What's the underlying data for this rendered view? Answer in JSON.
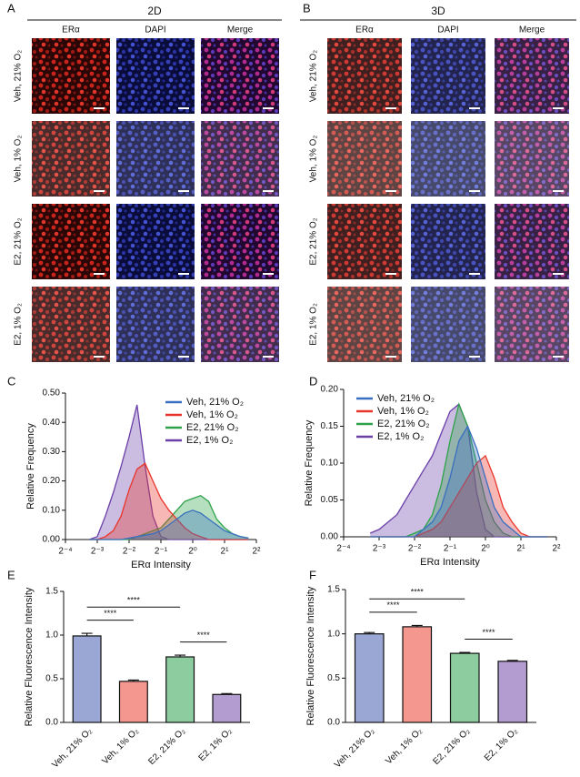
{
  "panels": {
    "A": {
      "letter": "A",
      "title": "2D",
      "columns": [
        "ERα",
        "DAPI",
        "Merge"
      ],
      "rows": [
        "Veh, 21% O₂",
        "Veh, 1% O₂",
        "E2, 21% O₂",
        "E2, 1% O₂"
      ]
    },
    "B": {
      "letter": "B",
      "title": "3D",
      "columns": [
        "ERα",
        "DAPI",
        "Merge"
      ],
      "rows": [
        "Veh, 21% O₂",
        "Veh, 1% O₂",
        "E2, 21% O₂",
        "E2, 1% O₂"
      ]
    }
  },
  "chart_data": [
    {
      "type": "area",
      "panel_label": "C",
      "x_label": "ERα Intensity",
      "y_label": "Relative Frequency",
      "xscale": "log",
      "log_base": 2,
      "xlim": [
        0.0625,
        4
      ],
      "xticks": [
        {
          "value": 0.0625,
          "label": "2⁻⁴"
        },
        {
          "value": 0.125,
          "label": "2⁻³"
        },
        {
          "value": 0.25,
          "label": "2⁻²"
        },
        {
          "value": 0.5,
          "label": "2⁻¹"
        },
        {
          "value": 1,
          "label": "2⁰"
        },
        {
          "value": 2,
          "label": "2¹"
        },
        {
          "value": 4,
          "label": "2²"
        }
      ],
      "ylim": [
        0,
        0.5
      ],
      "yticks": [
        {
          "value": 0,
          "label": "0.00"
        },
        {
          "value": 0.1,
          "label": "0.10"
        },
        {
          "value": 0.2,
          "label": "0.20"
        },
        {
          "value": 0.3,
          "label": "0.30"
        },
        {
          "value": 0.4,
          "label": "0.40"
        },
        {
          "value": 0.5,
          "label": "0.50"
        }
      ],
      "legend": "upper right",
      "x": [
        0.105,
        0.125,
        0.149,
        0.177,
        0.21,
        0.25,
        0.297,
        0.354,
        0.42,
        0.5,
        0.595,
        0.707,
        0.841,
        1,
        1.189,
        1.414,
        1.682,
        2,
        2.378,
        2.828,
        3.364
      ],
      "series": [
        {
          "name": "Veh, 21% O₂",
          "color": "#3a6fbf",
          "values": [
            0,
            0,
            0,
            0,
            0,
            0.005,
            0.01,
            0.015,
            0.02,
            0.03,
            0.05,
            0.07,
            0.09,
            0.1,
            0.09,
            0.07,
            0.05,
            0.03,
            0.02,
            0.01,
            0.005
          ]
        },
        {
          "name": "Veh, 1% O₂",
          "color": "#e8352b",
          "values": [
            0,
            0,
            0.01,
            0.03,
            0.08,
            0.17,
            0.24,
            0.26,
            0.2,
            0.14,
            0.1,
            0.07,
            0.04,
            0.02,
            0.01,
            0,
            0,
            0,
            0,
            0,
            0
          ]
        },
        {
          "name": "E2, 21% O₂",
          "color": "#2ea34a",
          "values": [
            0,
            0,
            0,
            0,
            0,
            0,
            0.01,
            0.02,
            0.03,
            0.04,
            0.07,
            0.1,
            0.13,
            0.14,
            0.15,
            0.13,
            0.07,
            0.04,
            0.02,
            0.01,
            0.005
          ]
        },
        {
          "name": "E2, 1% O₂",
          "color": "#6a3fa8",
          "values": [
            0,
            0.01,
            0.08,
            0.16,
            0.25,
            0.35,
            0.46,
            0.25,
            0.08,
            0.01,
            0,
            0,
            0,
            0,
            0,
            0,
            0,
            0,
            0,
            0,
            0
          ]
        }
      ]
    },
    {
      "type": "area",
      "panel_label": "D",
      "x_label": "ERα Intensity",
      "y_label": "Relative Frequency",
      "xscale": "log",
      "log_base": 2,
      "xlim": [
        0.0625,
        4
      ],
      "xticks": [
        {
          "value": 0.0625,
          "label": "2⁻⁴"
        },
        {
          "value": 0.125,
          "label": "2⁻³"
        },
        {
          "value": 0.25,
          "label": "2⁻²"
        },
        {
          "value": 0.5,
          "label": "2⁻¹"
        },
        {
          "value": 1,
          "label": "2⁰"
        },
        {
          "value": 2,
          "label": "2¹"
        },
        {
          "value": 4,
          "label": "2²"
        }
      ],
      "ylim": [
        0,
        0.2
      ],
      "yticks": [
        {
          "value": 0,
          "label": "0.00"
        },
        {
          "value": 0.05,
          "label": "0.05"
        },
        {
          "value": 0.1,
          "label": "0.10"
        },
        {
          "value": 0.15,
          "label": "0.15"
        },
        {
          "value": 0.2,
          "label": "0.20"
        }
      ],
      "legend": "upper left",
      "x": [
        0.105,
        0.125,
        0.149,
        0.177,
        0.21,
        0.25,
        0.297,
        0.354,
        0.42,
        0.5,
        0.595,
        0.707,
        0.841,
        1,
        1.189,
        1.414,
        1.682,
        2,
        2.378,
        2.828,
        3.364
      ],
      "series": [
        {
          "name": "Veh, 21% O₂",
          "color": "#3a6fbf",
          "values": [
            0,
            0,
            0,
            0,
            0,
            0,
            0.01,
            0.02,
            0.04,
            0.08,
            0.13,
            0.15,
            0.12,
            0.08,
            0.04,
            0.02,
            0.01,
            0,
            0,
            0,
            0
          ]
        },
        {
          "name": "Veh, 1% O₂",
          "color": "#e8352b",
          "values": [
            0,
            0,
            0,
            0,
            0,
            0,
            0.005,
            0.01,
            0.02,
            0.04,
            0.06,
            0.08,
            0.1,
            0.11,
            0.08,
            0.04,
            0.02,
            0.005,
            0,
            0,
            0
          ]
        },
        {
          "name": "E2, 21% O₂",
          "color": "#2ea34a",
          "values": [
            0,
            0,
            0,
            0,
            0,
            0.005,
            0.01,
            0.03,
            0.07,
            0.13,
            0.18,
            0.15,
            0.1,
            0.05,
            0.02,
            0.005,
            0,
            0,
            0,
            0,
            0
          ]
        },
        {
          "name": "E2, 1% O₂",
          "color": "#6a3fa8",
          "values": [
            0.005,
            0.01,
            0.02,
            0.03,
            0.05,
            0.07,
            0.09,
            0.11,
            0.14,
            0.17,
            0.18,
            0.15,
            0.06,
            0.01,
            0,
            0,
            0,
            0,
            0,
            0,
            0
          ]
        }
      ]
    },
    {
      "type": "bar",
      "panel_label": "E",
      "y_label": "Relative Fluorescence Intensity",
      "categories": [
        "Veh, 21% O₂",
        "Veh, 1% O₂",
        "E2, 21% O₂",
        "E2, 1% O₂"
      ],
      "values": [
        0.99,
        0.47,
        0.75,
        0.32
      ],
      "errors": [
        0.03,
        0.015,
        0.02,
        0.01
      ],
      "colors": [
        "#9aa7d4",
        "#f4978e",
        "#8dcc9e",
        "#b39cd0"
      ],
      "ylim": [
        0,
        1.5
      ],
      "yticks": [
        {
          "value": 0,
          "label": "0.0"
        },
        {
          "value": 0.5,
          "label": "0.5"
        },
        {
          "value": 1,
          "label": "1.0"
        },
        {
          "value": 1.5,
          "label": "1.5"
        }
      ],
      "annotations": [
        {
          "text": "****",
          "between": [
            "Veh, 21% O₂",
            "Veh, 1% O₂"
          ]
        },
        {
          "text": "****",
          "between": [
            "Veh, 21% O₂",
            "E2, 21% O₂"
          ]
        },
        {
          "text": "****",
          "between": [
            "E2, 21% O₂",
            "E2, 1% O₂"
          ]
        }
      ]
    },
    {
      "type": "bar",
      "panel_label": "F",
      "y_label": "Relative Fluorescence Intensity",
      "categories": [
        "Veh, 21% O₂",
        "Veh, 1% O₂",
        "E2, 21% O₂",
        "E2, 1% O₂"
      ],
      "values": [
        1.0,
        1.08,
        0.78,
        0.69
      ],
      "errors": [
        0.015,
        0.015,
        0.01,
        0.01
      ],
      "colors": [
        "#9aa7d4",
        "#f4978e",
        "#8dcc9e",
        "#b39cd0"
      ],
      "ylim": [
        0,
        1.5
      ],
      "yticks": [
        {
          "value": 0,
          "label": "0.0"
        },
        {
          "value": 0.5,
          "label": "0.5"
        },
        {
          "value": 1,
          "label": "1.0"
        },
        {
          "value": 1.5,
          "label": "1.5"
        }
      ],
      "annotations": [
        {
          "text": "****",
          "between": [
            "Veh, 21% O₂",
            "Veh, 1% O₂"
          ]
        },
        {
          "text": "****",
          "between": [
            "Veh, 21% O₂",
            "E2, 21% O₂"
          ]
        },
        {
          "text": "****",
          "between": [
            "E2, 21% O₂",
            "E2, 1% O₂"
          ]
        }
      ]
    }
  ]
}
